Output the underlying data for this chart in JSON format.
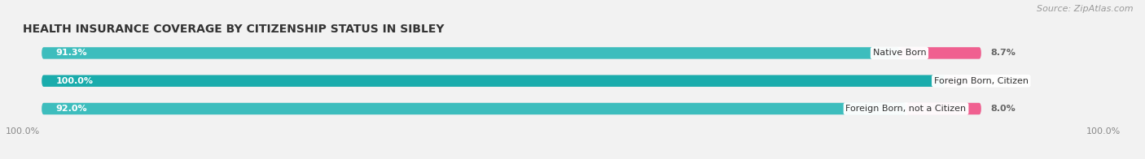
{
  "title": "HEALTH INSURANCE COVERAGE BY CITIZENSHIP STATUS IN SIBLEY",
  "source": "Source: ZipAtlas.com",
  "categories": [
    "Native Born",
    "Foreign Born, Citizen",
    "Foreign Born, not a Citizen"
  ],
  "with_coverage": [
    91.3,
    100.0,
    92.0
  ],
  "without_coverage": [
    8.7,
    0.0,
    8.0
  ],
  "color_with": "#3DBDBD",
  "color_with_row2": "#1AACAC",
  "color_without_strong": "#F06090",
  "color_without_light": "#F5B8CC",
  "background_color": "#F2F2F2",
  "bar_background": "#E2E2E2",
  "title_fontsize": 10,
  "source_fontsize": 8,
  "label_fontsize": 8,
  "tick_fontsize": 8,
  "legend_fontsize": 8,
  "bar_height": 0.42,
  "total_width": 100.0,
  "bar_colors_with": [
    "#3DBDBD",
    "#1AACAC",
    "#3DBDBD"
  ],
  "bar_colors_without": [
    "#F06090",
    "#F5B8CC",
    "#F06090"
  ]
}
